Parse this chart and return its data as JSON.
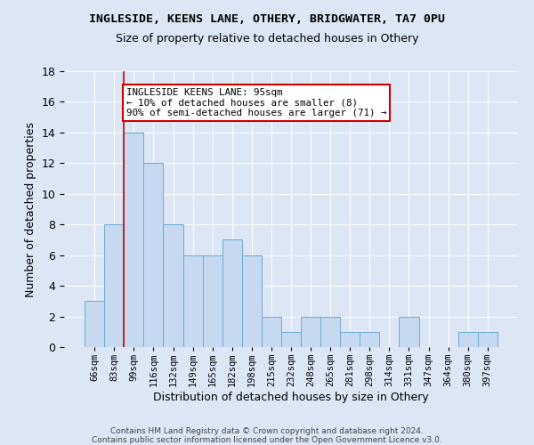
{
  "title1": "INGLESIDE, KEENS LANE, OTHERY, BRIDGWATER, TA7 0PU",
  "title2": "Size of property relative to detached houses in Othery",
  "xlabel": "Distribution of detached houses by size in Othery",
  "ylabel": "Number of detached properties",
  "footnote1": "Contains HM Land Registry data © Crown copyright and database right 2024.",
  "footnote2": "Contains public sector information licensed under the Open Government Licence v3.0.",
  "categories": [
    "66sqm",
    "83sqm",
    "99sqm",
    "116sqm",
    "132sqm",
    "149sqm",
    "165sqm",
    "182sqm",
    "198sqm",
    "215sqm",
    "232sqm",
    "248sqm",
    "265sqm",
    "281sqm",
    "298sqm",
    "314sqm",
    "331sqm",
    "347sqm",
    "364sqm",
    "380sqm",
    "397sqm"
  ],
  "values": [
    3,
    8,
    14,
    12,
    8,
    6,
    6,
    7,
    6,
    2,
    1,
    2,
    2,
    1,
    1,
    0,
    2,
    0,
    0,
    1,
    1
  ],
  "bar_color": "#c7d9f0",
  "bar_edge_color": "#6aaad4",
  "red_line_x": 1.5,
  "annotation_text": "INGLESIDE KEENS LANE: 95sqm\n← 10% of detached houses are smaller (8)\n90% of semi-detached houses are larger (71) →",
  "annotation_box_color": "#ffffff",
  "annotation_box_edge": "#cc0000",
  "background_color": "#dce6f5",
  "ylim": [
    0,
    18
  ],
  "yticks": [
    0,
    2,
    4,
    6,
    8,
    10,
    12,
    14,
    16,
    18
  ]
}
